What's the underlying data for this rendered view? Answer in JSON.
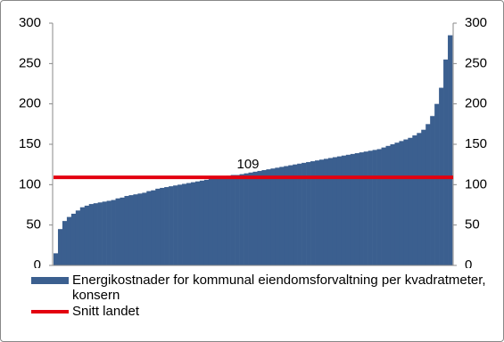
{
  "chart_data": {
    "type": "bar",
    "series": [
      {
        "name": "Energikostnader for kommunal eiendomsforvaltning per kvadratmeter, konsern",
        "color": "#3b5f8f",
        "values": [
          15,
          45,
          55,
          60,
          64,
          68,
          72,
          74,
          76,
          77,
          78,
          79,
          80,
          81,
          83,
          84,
          86,
          87,
          88,
          89,
          90,
          92,
          93,
          95,
          96,
          97,
          98,
          99,
          100,
          101,
          102,
          103,
          104,
          105,
          106,
          107,
          108,
          109,
          110,
          111,
          112,
          112,
          113,
          114,
          115,
          116,
          117,
          118,
          119,
          120,
          121,
          122,
          123,
          124,
          125,
          126,
          127,
          128,
          129,
          130,
          131,
          132,
          133,
          134,
          135,
          136,
          137,
          138,
          139,
          140,
          141,
          142,
          143,
          144,
          146,
          148,
          150,
          152,
          154,
          156,
          158,
          161,
          164,
          168,
          175,
          185,
          200,
          220,
          255,
          285
        ]
      }
    ],
    "average": {
      "name": "Snitt landet",
      "value": 109,
      "color": "#e3000f"
    },
    "ylim": [
      0,
      300
    ],
    "yticks": [
      0,
      50,
      100,
      150,
      200,
      250,
      300
    ],
    "y2lim": [
      0,
      300
    ],
    "y2ticks": [
      0,
      50,
      100,
      150,
      200,
      250,
      300
    ]
  }
}
